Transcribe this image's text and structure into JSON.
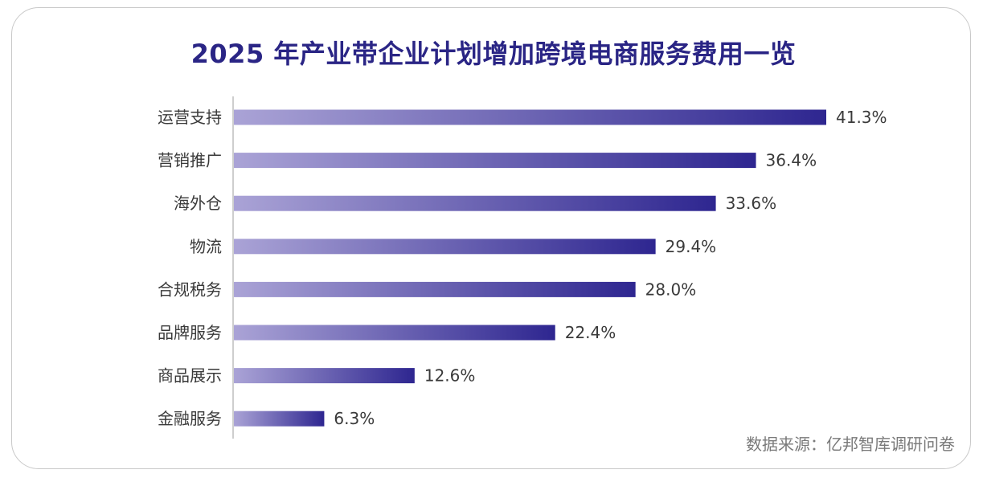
{
  "chart_data": {
    "type": "bar",
    "orientation": "horizontal",
    "title": "2025 年产业带企业计划增加跨境电商服务费用一览",
    "categories": [
      "运营支持",
      "营销推广",
      "海外仓",
      "物流",
      "合规税务",
      "品牌服务",
      "商品展示",
      "金融服务"
    ],
    "values": [
      41.3,
      36.4,
      33.6,
      29.4,
      28.0,
      22.4,
      12.6,
      6.3
    ],
    "value_labels": [
      "41.3%",
      "36.4%",
      "33.6%",
      "29.4%",
      "28.0%",
      "22.4%",
      "12.6%",
      "6.3%"
    ],
    "unit": "%",
    "xlim": [
      0,
      45
    ],
    "grid": false,
    "legend": "none",
    "colors": {
      "bar_start": "#aaa3d6",
      "bar_end": "#2e2690",
      "title": "#2a2585",
      "axis": "#bdbdbd"
    }
  },
  "source": "数据来源：亿邦智库调研问卷"
}
